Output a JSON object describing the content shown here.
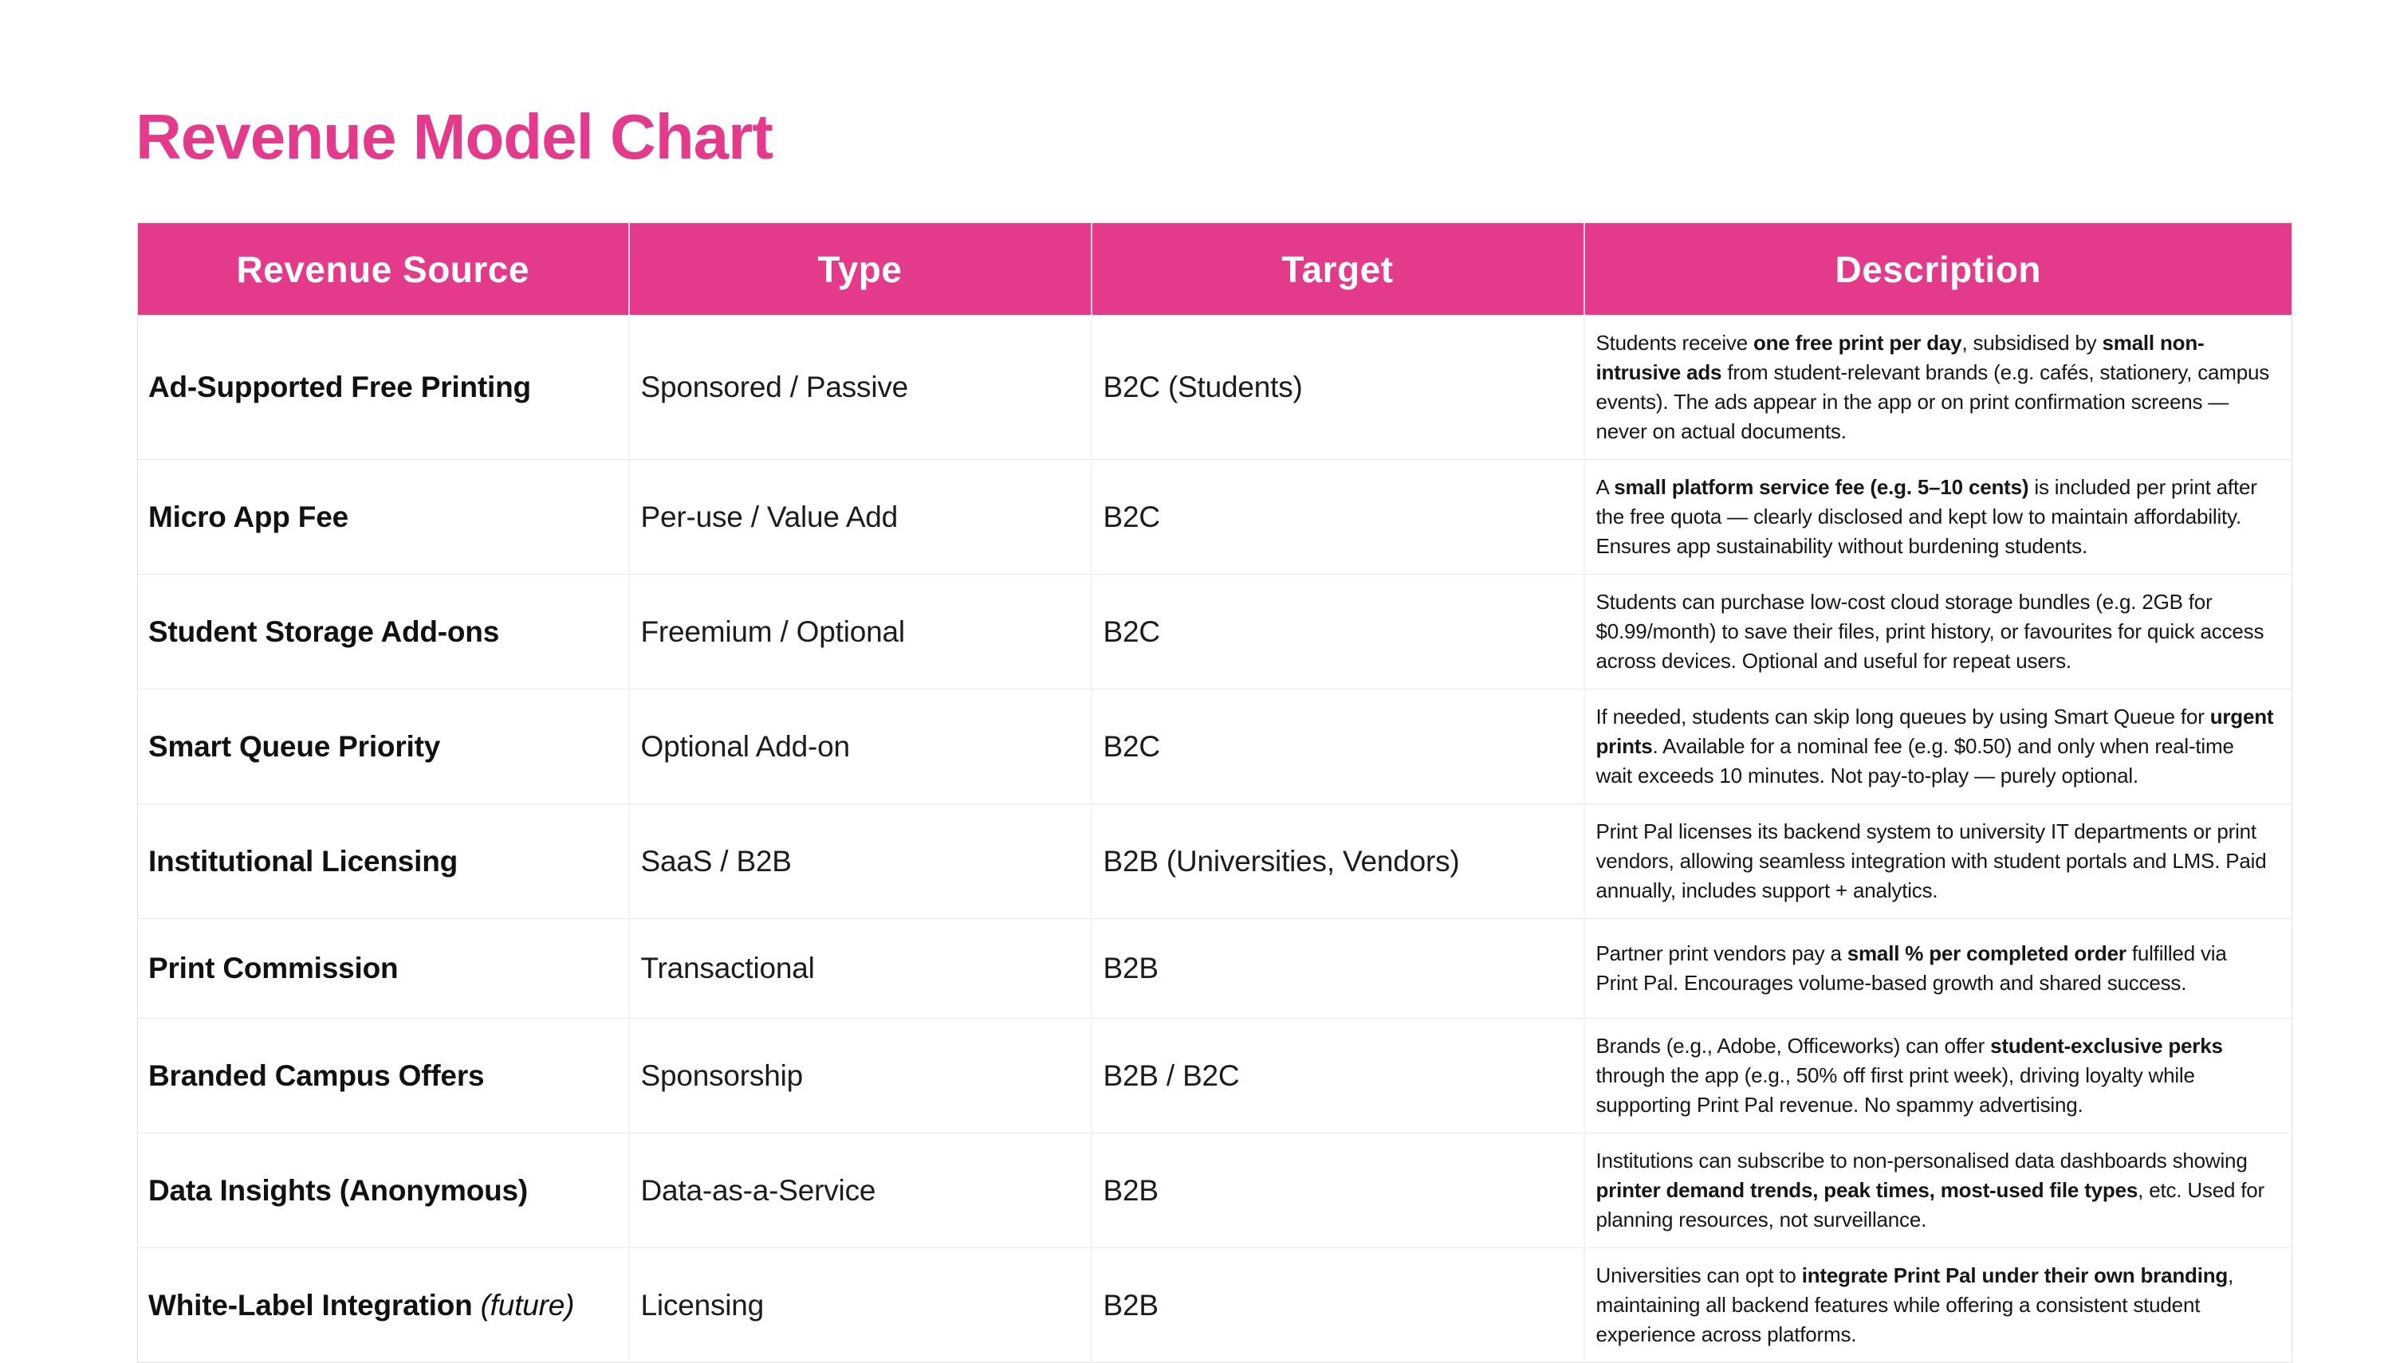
{
  "title": "Revenue Model Chart",
  "theme": {
    "accent_pink": "#e43a8c",
    "header_text_color": "#ffffff",
    "body_text_color": "#111111",
    "grid_line_color": "#e8e8e8"
  },
  "table": {
    "columns": [
      "Revenue Source",
      "Type",
      "Target",
      "Description"
    ],
    "rows": [
      {
        "source": [
          {
            "t": "Ad-Supported Free Printing",
            "b": true
          }
        ],
        "type": "Sponsored / Passive",
        "target": "B2C (Students)",
        "description": [
          {
            "t": "Students receive ",
            "b": false
          },
          {
            "t": "one free print per day",
            "b": true
          },
          {
            "t": ", subsidised by ",
            "b": false
          },
          {
            "t": "small non-intrusive ads",
            "b": true
          },
          {
            "t": " from student-relevant brands (e.g. cafés, stationery, campus events). The ads appear in the app or on print confirmation screens — never on actual documents.",
            "b": false
          }
        ]
      },
      {
        "source": [
          {
            "t": "Micro App Fee",
            "b": true
          }
        ],
        "type": "Per-use / Value Add",
        "target": "B2C",
        "description": [
          {
            "t": "A ",
            "b": false
          },
          {
            "t": "small platform service fee (e.g. 5–10 cents)",
            "b": true
          },
          {
            "t": " is included per print after the free quota — clearly disclosed and kept low to maintain affordability. Ensures app sustainability without burdening students.",
            "b": false
          }
        ]
      },
      {
        "source": [
          {
            "t": "Student Storage Add-ons",
            "b": true
          }
        ],
        "type": "Freemium / Optional",
        "target": "B2C",
        "description": [
          {
            "t": "Students can purchase low-cost cloud storage bundles (e.g. 2GB for $0.99/month) to save their files, print history, or favourites for quick access across devices. Optional and useful for repeat users.",
            "b": false
          }
        ]
      },
      {
        "source": [
          {
            "t": "Smart Queue Priority",
            "b": true
          }
        ],
        "type": "Optional Add-on",
        "target": "B2C",
        "description": [
          {
            "t": "If needed, students can skip long queues by using Smart Queue for ",
            "b": false
          },
          {
            "t": "urgent prints",
            "b": true
          },
          {
            "t": ". Available for a nominal fee (e.g. $0.50) and only when real-time wait exceeds 10 minutes. Not pay-to-play — purely optional.",
            "b": false
          }
        ]
      },
      {
        "source": [
          {
            "t": "Institutional Licensing",
            "b": true
          }
        ],
        "type": "SaaS / B2B",
        "target": "B2B (Universities, Vendors)",
        "description": [
          {
            "t": "Print Pal licenses its backend system to university IT departments or print vendors, allowing seamless integration with student portals and LMS. Paid annually, includes support + analytics.",
            "b": false
          }
        ]
      },
      {
        "source": [
          {
            "t": "Print Commission",
            "b": true
          }
        ],
        "type": "Transactional",
        "target": "B2B",
        "description": [
          {
            "t": "Partner print vendors pay a ",
            "b": false
          },
          {
            "t": "small % per completed order",
            "b": true
          },
          {
            "t": " fulfilled via Print Pal. Encourages volume-based growth and shared success.",
            "b": false
          }
        ]
      },
      {
        "source": [
          {
            "t": "Branded Campus Offers",
            "b": true
          }
        ],
        "type": "Sponsorship",
        "target": "B2B / B2C",
        "description": [
          {
            "t": "Brands (e.g., Adobe, Officeworks) can offer ",
            "b": false
          },
          {
            "t": "student-exclusive perks",
            "b": true
          },
          {
            "t": " through the app (e.g., 50% off first print week), driving loyalty while supporting Print Pal revenue. No spammy advertising.",
            "b": false
          }
        ]
      },
      {
        "source": [
          {
            "t": "Data Insights (Anonymous)",
            "b": true
          }
        ],
        "type": "Data-as-a-Service",
        "target": "B2B",
        "description": [
          {
            "t": "Institutions can subscribe to non-personalised data dashboards showing ",
            "b": false
          },
          {
            "t": "printer demand trends, peak times, most-used file types",
            "b": true
          },
          {
            "t": ", etc. Used for planning resources, not surveillance.",
            "b": false
          }
        ]
      },
      {
        "source": [
          {
            "t": "White-Label Integration",
            "b": true
          },
          {
            "t": " ",
            "b": false
          },
          {
            "t": "(future)",
            "b": false,
            "i": true
          }
        ],
        "type": "Licensing",
        "target": "B2B",
        "description": [
          {
            "t": "Universities can opt to ",
            "b": false
          },
          {
            "t": "integrate Print Pal under their own branding",
            "b": true
          },
          {
            "t": ", maintaining all backend features while offering a consistent student experience across platforms.",
            "b": false
          }
        ]
      }
    ]
  }
}
